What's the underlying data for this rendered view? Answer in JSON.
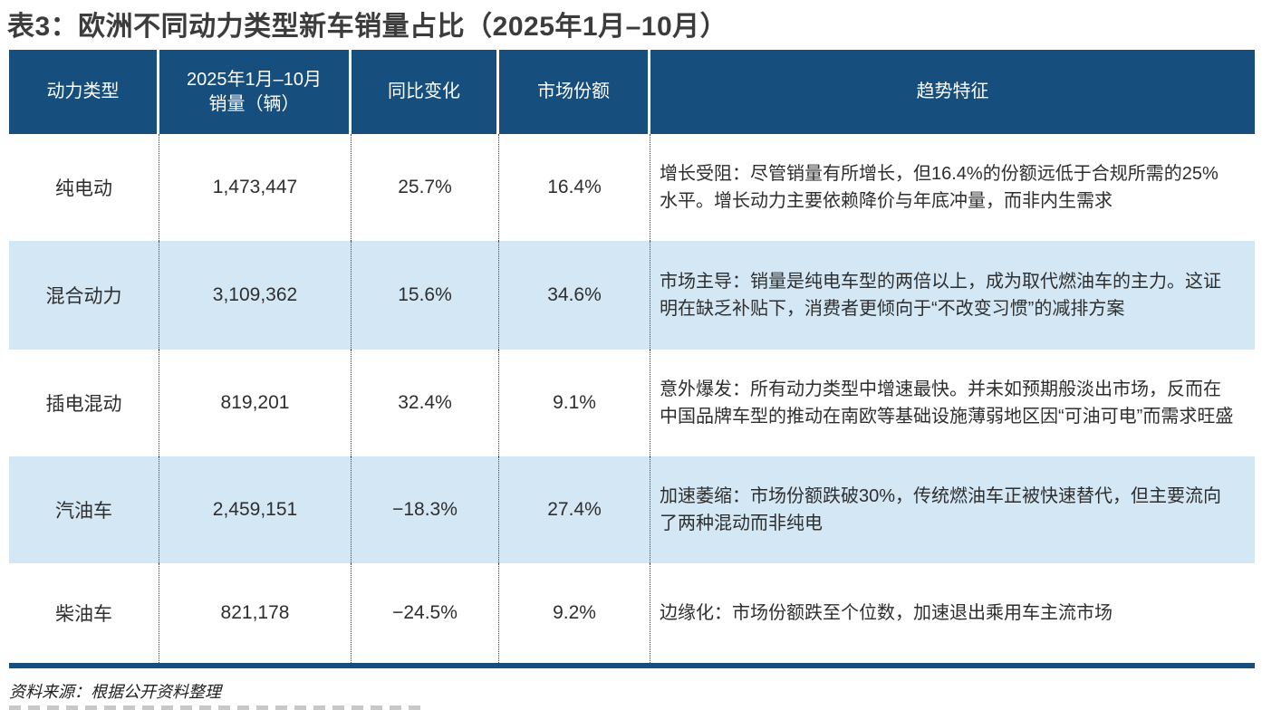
{
  "title": "表3：欧洲不同动力类型新车销量占比（2025年1月–10月）",
  "table": {
    "columns": {
      "power_type": "动力类型",
      "sales": "2025年1月–10月\n销量（辆）",
      "yoy": "同比变化",
      "share": "市场份额",
      "trend": "趋势特征"
    },
    "rows": [
      {
        "type": "纯电动",
        "sales": "1,473,447",
        "yoy": "25.7%",
        "share": "16.4%",
        "trend": "增长受阻：尽管销量有所增长，但16.4%的份额远低于合规所需的25%水平。增长动力主要依赖降价与年底冲量，而非内生需求"
      },
      {
        "type": "混合动力",
        "sales": "3,109,362",
        "yoy": "15.6%",
        "share": "34.6%",
        "trend": "市场主导：销量是纯电车型的两倍以上，成为取代燃油车的主力。这证明在缺乏补贴下，消费者更倾向于“不改变习惯”的减排方案"
      },
      {
        "type": "插电混动",
        "sales": "819,201",
        "yoy": "32.4%",
        "share": "9.1%",
        "trend": "意外爆发：所有动力类型中增速最快。并未如预期般淡出市场，反而在中国品牌车型的推动在南欧等基础设施薄弱地区因“可油可电”而需求旺盛"
      },
      {
        "type": "汽油车",
        "sales": "2,459,151",
        "yoy": "−18.3%",
        "share": "27.4%",
        "trend": "加速萎缩：市场份额跌破30%，传统燃油车正被快速替代，但主要流向了两种混动而非纯电"
      },
      {
        "type": "柴油车",
        "sales": "821,178",
        "yoy": "−24.5%",
        "share": "9.2%",
        "trend": "边缘化：市场份额跌至个位数，加速退出乘用车主流市场"
      }
    ]
  },
  "source_note": "资料来源：根据公开资料整理",
  "colors": {
    "header_bg": "#164e7d",
    "alt_row_bg": "#d3e8f4",
    "bottom_border": "#164e7d",
    "title_text": "#3c3c3c",
    "body_text": "#2e2e2e"
  }
}
